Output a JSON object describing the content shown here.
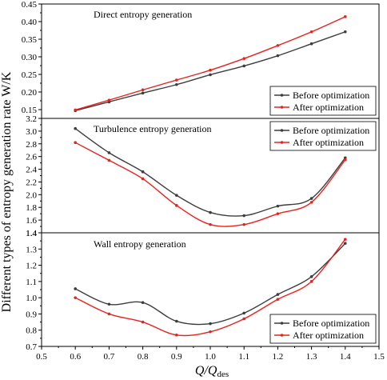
{
  "chart_data": [
    {
      "type": "line",
      "title": "Direct entropy generation",
      "x": [
        0.6,
        0.7,
        0.8,
        0.9,
        1.0,
        1.1,
        1.2,
        1.3,
        1.4
      ],
      "series": [
        {
          "name": "Before optimization",
          "color": "#3d3d3d",
          "values": [
            0.147,
            0.172,
            0.197,
            0.221,
            0.249,
            0.274,
            0.303,
            0.337,
            0.371
          ]
        },
        {
          "name": "After optimization",
          "color": "#e8221c",
          "values": [
            0.149,
            0.177,
            0.206,
            0.234,
            0.262,
            0.295,
            0.332,
            0.371,
            0.414
          ]
        }
      ],
      "xlim": [
        0.5,
        1.5
      ],
      "ylim": [
        0.125,
        0.45
      ],
      "yticks": [
        0.15,
        0.2,
        0.25,
        0.3,
        0.35,
        0.4,
        0.45
      ],
      "ytick_labels": [
        "0.15",
        "0.20",
        "0.25",
        "0.30",
        "0.35",
        "0.40",
        "0.45"
      ],
      "legend": "bottom-right"
    },
    {
      "type": "line",
      "title": "Turbulence entropy generation",
      "x": [
        0.6,
        0.7,
        0.8,
        0.9,
        1.0,
        1.1,
        1.2,
        1.3,
        1.4
      ],
      "series": [
        {
          "name": "Before optimization",
          "color": "#3d3d3d",
          "values": [
            3.04,
            2.66,
            2.36,
            1.99,
            1.72,
            1.67,
            1.82,
            1.94,
            2.58
          ]
        },
        {
          "name": "After optimization",
          "color": "#e8221c",
          "values": [
            2.82,
            2.54,
            2.25,
            1.83,
            1.53,
            1.53,
            1.7,
            1.88,
            2.55
          ]
        }
      ],
      "xlim": [
        0.5,
        1.5
      ],
      "ylim": [
        1.4,
        3.2
      ],
      "yticks": [
        1.4,
        1.6,
        1.8,
        2.0,
        2.2,
        2.4,
        2.6,
        2.8,
        3.0,
        3.2
      ],
      "ytick_labels": [
        "1.4",
        "1.6",
        "1.8",
        "2.0",
        "2.2",
        "2.4",
        "2.6",
        "2.8",
        "3.0",
        "3.2"
      ],
      "legend": "top-right"
    },
    {
      "type": "line",
      "title": "Wall entropy generation",
      "x": [
        0.6,
        0.7,
        0.8,
        0.9,
        1.0,
        1.1,
        1.2,
        1.3,
        1.4
      ],
      "series": [
        {
          "name": "Before optimization",
          "color": "#3d3d3d",
          "values": [
            1.055,
            0.96,
            0.97,
            0.855,
            0.84,
            0.905,
            1.02,
            1.13,
            1.335
          ]
        },
        {
          "name": "After optimization",
          "color": "#e8221c",
          "values": [
            1.0,
            0.9,
            0.85,
            0.77,
            0.79,
            0.87,
            0.99,
            1.1,
            1.36
          ]
        }
      ],
      "xlim": [
        0.5,
        1.5
      ],
      "ylim": [
        0.7,
        1.4
      ],
      "yticks": [
        0.7,
        0.8,
        0.9,
        1.0,
        1.1,
        1.2,
        1.3,
        1.4
      ],
      "ytick_labels": [
        "0.7",
        "0.8",
        "0.9",
        "1.0",
        "1.1",
        "1.2",
        "1.3",
        "1.4"
      ],
      "legend": "bottom-right"
    }
  ],
  "xticks": [
    0.5,
    0.6,
    0.7,
    0.8,
    0.9,
    1.0,
    1.1,
    1.2,
    1.3,
    1.4,
    1.5
  ],
  "xtick_labels": [
    "0.5",
    "0.6",
    "0.7",
    "0.8",
    "0.9",
    "1.0",
    "1.1",
    "1.2",
    "1.3",
    "1.4",
    "1.5"
  ],
  "xlabel_main": "Q/Q",
  "xlabel_sub": "des",
  "ylabel": "Different types of entropy generation rate W/K"
}
